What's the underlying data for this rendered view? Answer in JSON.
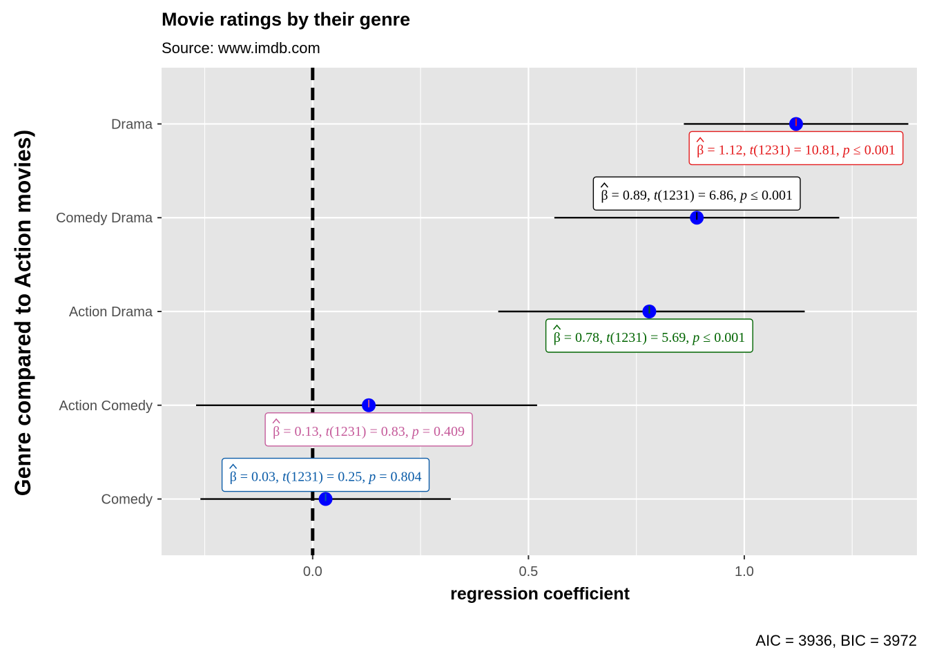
{
  "chart_data": {
    "type": "scatter",
    "title": "Movie ratings by their genre",
    "subtitle": "Source: www.imdb.com",
    "xlabel": "regression coefficient",
    "ylabel": "Genre compared to Action movies)",
    "caption": "AIC = 3936, BIC = 3972",
    "xlim": [
      -0.35,
      1.4
    ],
    "x_ticks": [
      {
        "value": 0.0,
        "label": "0.0"
      },
      {
        "value": 0.5,
        "label": "0.5"
      },
      {
        "value": 1.0,
        "label": "1.0"
      }
    ],
    "categories": [
      "Drama",
      "Comedy Drama",
      "Action Drama",
      "Action Comedy",
      "Comedy"
    ],
    "reference_line": 0,
    "grid": true,
    "point_color": "#0000FF",
    "points": [
      {
        "category": "Drama",
        "estimate": 1.12,
        "ci_low": 0.86,
        "ci_high": 1.38,
        "beta": "1.12",
        "t": "10.81",
        "df": "1231",
        "p_op": "≤",
        "p": "0.001",
        "color": "#E41A1C",
        "label_side": "below"
      },
      {
        "category": "Comedy Drama",
        "estimate": 0.89,
        "ci_low": 0.56,
        "ci_high": 1.22,
        "beta": "0.89",
        "t": "6.86",
        "df": "1231",
        "p_op": "≤",
        "p": "0.001",
        "color": "#000000",
        "label_side": "above"
      },
      {
        "category": "Action Drama",
        "estimate": 0.78,
        "ci_low": 0.43,
        "ci_high": 1.14,
        "beta": "0.78",
        "t": "5.69",
        "df": "1231",
        "p_op": "≤",
        "p": "0.001",
        "color": "#006400",
        "label_side": "below"
      },
      {
        "category": "Action Comedy",
        "estimate": 0.13,
        "ci_low": -0.27,
        "ci_high": 0.52,
        "beta": "0.13",
        "t": "0.83",
        "df": "1231",
        "p_op": "=",
        "p": "0.409",
        "color": "#C55A9A",
        "label_side": "below"
      },
      {
        "category": "Comedy",
        "estimate": 0.03,
        "ci_low": -0.26,
        "ci_high": 0.32,
        "beta": "0.03",
        "t": "0.25",
        "df": "1231",
        "p_op": "=",
        "p": "0.804",
        "color": "#0B5CA8",
        "label_side": "above"
      }
    ]
  }
}
